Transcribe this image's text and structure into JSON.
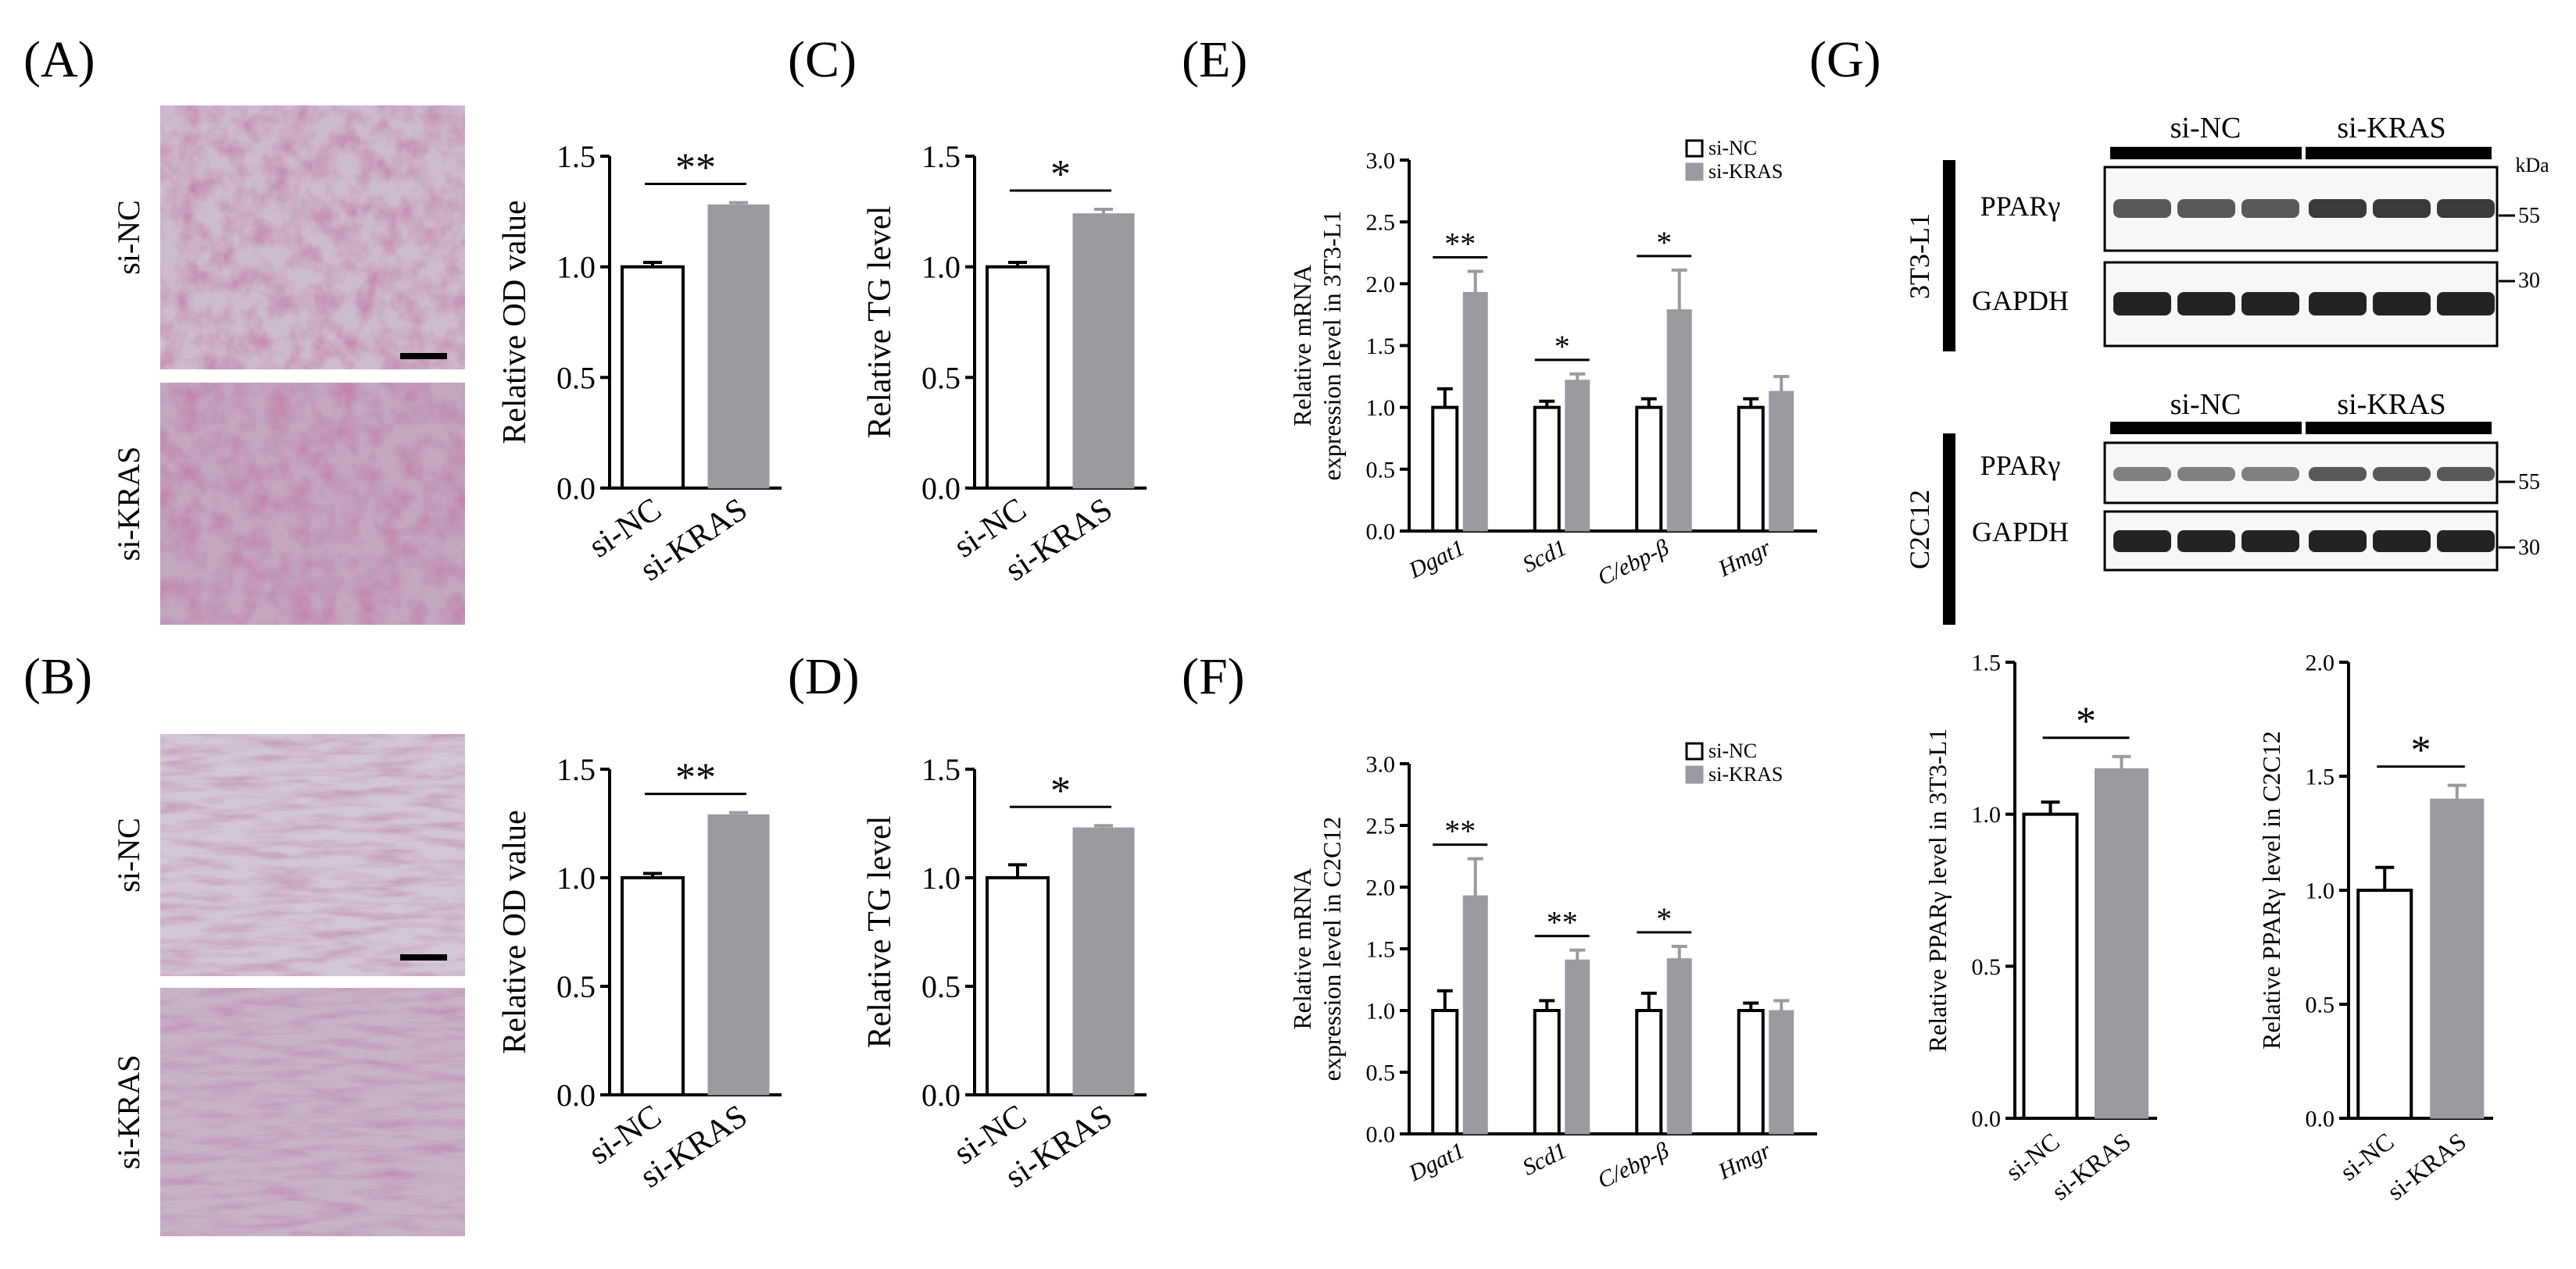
{
  "figure": {
    "panel_labels": [
      "(A)",
      "(B)",
      "(C)",
      "(D)",
      "(E)",
      "(F)",
      "(G)"
    ],
    "colors": {
      "control": "#ffffff",
      "treatment": "#9b9aa0",
      "stain_base": "#cdbcd0",
      "stain_dark": "#8b2c57",
      "stain_blob": "#b23a62"
    }
  },
  "stain_images": {
    "a_row_labels": [
      "si-NC",
      "si-KRAS"
    ],
    "b_row_labels": [
      "si-NC",
      "si-KRAS"
    ]
  },
  "western_blot": {
    "groups": [
      "si-NC",
      "si-KRAS"
    ],
    "kda_label": "kDa",
    "blocks": [
      {
        "cell_line": "3T3-L1",
        "bands": [
          "PPARγ",
          "GAPDH"
        ],
        "markers": [
          "55",
          "30"
        ]
      },
      {
        "cell_line": "C2C12",
        "bands": [
          "PPARγ",
          "GAPDH"
        ],
        "markers": [
          "55",
          "30"
        ]
      }
    ]
  },
  "chart_data": [
    {
      "panel": "A",
      "type": "bar",
      "categories": [
        "si-NC",
        "si-KRAS"
      ],
      "values": [
        1.0,
        1.28
      ],
      "errors": [
        0.02,
        0.01
      ],
      "ylabel": "Relative OD value",
      "ylim": [
        0,
        1.5
      ],
      "yticks": [
        "0.0",
        "0.5",
        "1.0",
        "1.5"
      ],
      "significance": "**"
    },
    {
      "panel": "B",
      "type": "bar",
      "categories": [
        "si-NC",
        "si-KRAS"
      ],
      "values": [
        1.0,
        1.29
      ],
      "errors": [
        0.02,
        0.01
      ],
      "ylabel": "Relative OD value",
      "ylim": [
        0,
        1.5
      ],
      "yticks": [
        "0.0",
        "0.5",
        "1.0",
        "1.5"
      ],
      "significance": "**"
    },
    {
      "panel": "C",
      "type": "bar",
      "categories": [
        "si-NC",
        "si-KRAS"
      ],
      "values": [
        1.0,
        1.24
      ],
      "errors": [
        0.02,
        0.02
      ],
      "ylabel": "Relative TG level",
      "ylim": [
        0,
        1.5
      ],
      "yticks": [
        "0.0",
        "0.5",
        "1.0",
        "1.5"
      ],
      "significance": "*"
    },
    {
      "panel": "D",
      "type": "bar",
      "categories": [
        "si-NC",
        "si-KRAS"
      ],
      "values": [
        1.0,
        1.23
      ],
      "errors": [
        0.06,
        0.01
      ],
      "ylabel": "Relative TG level",
      "ylim": [
        0,
        1.5
      ],
      "yticks": [
        "0.0",
        "0.5",
        "1.0",
        "1.5"
      ],
      "significance": "*"
    },
    {
      "panel": "E",
      "type": "bar",
      "categories": [
        "Dgat1",
        "Scd1",
        "C/ebp-β",
        "Hmgr"
      ],
      "series": [
        {
          "name": "si-NC",
          "values": [
            1.0,
            1.0,
            1.0,
            1.0
          ],
          "errors": [
            0.15,
            0.05,
            0.07,
            0.07
          ]
        },
        {
          "name": "si-KRAS",
          "values": [
            1.93,
            1.22,
            1.79,
            1.13
          ],
          "errors": [
            0.17,
            0.05,
            0.32,
            0.12
          ]
        }
      ],
      "ylabel": [
        "Relative mRNA",
        "expression level in 3T3-L1"
      ],
      "ylim": [
        0,
        3.0
      ],
      "yticks": [
        "0.0",
        "0.5",
        "1.0",
        "1.5",
        "2.0",
        "2.5",
        "3.0"
      ],
      "significance": [
        "**",
        "*",
        "*",
        ""
      ],
      "legend": "top-right"
    },
    {
      "panel": "F",
      "type": "bar",
      "categories": [
        "Dgat1",
        "Scd1",
        "C/ebp-β",
        "Hmgr"
      ],
      "series": [
        {
          "name": "si-NC",
          "values": [
            1.0,
            1.0,
            1.0,
            1.0
          ],
          "errors": [
            0.16,
            0.08,
            0.14,
            0.06
          ]
        },
        {
          "name": "si-KRAS",
          "values": [
            1.93,
            1.41,
            1.42,
            1.0
          ],
          "errors": [
            0.3,
            0.08,
            0.1,
            0.08
          ]
        }
      ],
      "ylabel": [
        "Relative mRNA",
        "expression level in C2C12"
      ],
      "ylim": [
        0,
        3.0
      ],
      "yticks": [
        "0.0",
        "0.5",
        "1.0",
        "1.5",
        "2.0",
        "2.5",
        "3.0"
      ],
      "significance": [
        "**",
        "**",
        "*",
        ""
      ],
      "legend": "top-right"
    },
    {
      "panel": "G1",
      "type": "bar",
      "categories": [
        "si-NC",
        "si-KRAS"
      ],
      "values": [
        1.0,
        1.15
      ],
      "errors": [
        0.04,
        0.04
      ],
      "ylabel": "Relative PPARγ level in 3T3-L1",
      "ylim": [
        0,
        1.5
      ],
      "yticks": [
        "0.0",
        "0.5",
        "1.0",
        "1.5"
      ],
      "significance": "*"
    },
    {
      "panel": "G2",
      "type": "bar",
      "categories": [
        "si-NC",
        "si-KRAS"
      ],
      "values": [
        1.0,
        1.4
      ],
      "errors": [
        0.1,
        0.06
      ],
      "ylabel": "Relative PPARγ level in C2C12",
      "ylim": [
        0,
        2.0
      ],
      "yticks": [
        "0.0",
        "0.5",
        "1.0",
        "1.5",
        "2.0"
      ],
      "significance": "*"
    }
  ]
}
